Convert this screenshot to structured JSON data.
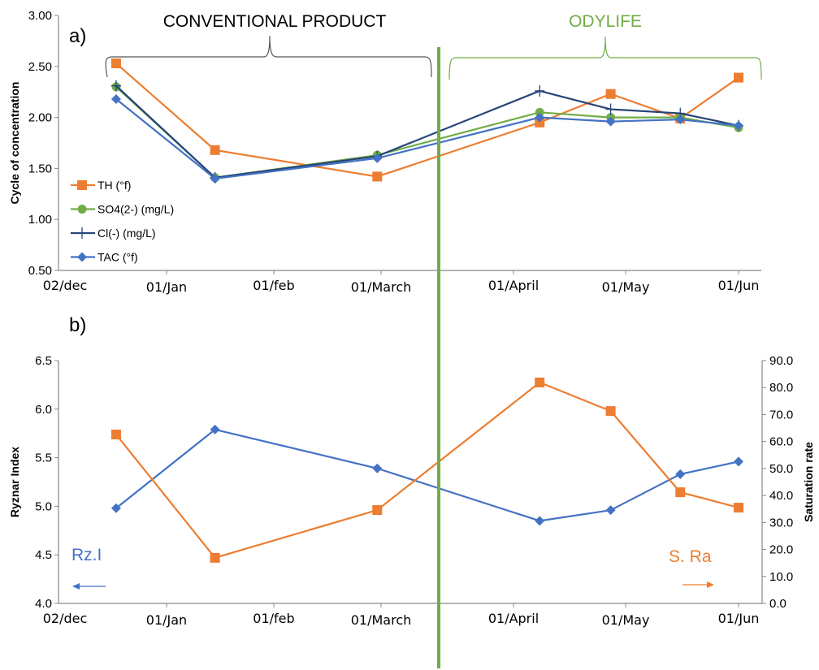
{
  "annotations": {
    "panel_a": "a)",
    "panel_b": "b)",
    "conventional": "CONVENTIONAL PRODUCT",
    "odylife": "ODYLIFE",
    "rzi_label": "Rz.I",
    "sra_label": "S. Ra"
  },
  "colors": {
    "TH": "#ed7d31",
    "SO4": "#70ad47",
    "Cl": "#264478",
    "TAC": "#4472c4",
    "divider": "#70ad47",
    "conventional_brace": "#555555",
    "odylife": "#70ad47"
  },
  "chart_data": [
    {
      "type": "line",
      "panel": "a)",
      "ylabel": "Cycle of concentration",
      "ylim": [
        0.5,
        3.0
      ],
      "yticks": [
        "0.50",
        "1.00",
        "1.50",
        "2.00",
        "2.50",
        "3.00"
      ],
      "xticks": [
        "02/dec",
        "01/Jan",
        "01/feb",
        "01/March",
        "01/April",
        "01/May",
        "01/Jun"
      ],
      "x": [
        "12-18",
        "01-15",
        "02-28",
        "04-08",
        "04-27",
        "05-16",
        "06-01"
      ],
      "legend_position": "left",
      "series": [
        {
          "name": "TH (°f)",
          "key": "TH",
          "marker": "square",
          "values": [
            2.53,
            1.68,
            1.42,
            1.95,
            2.23,
            1.99,
            2.39
          ]
        },
        {
          "name": "SO4(2-) (mg/L)",
          "key": "SO4",
          "marker": "circle",
          "values": [
            2.3,
            1.41,
            1.63,
            2.05,
            2.0,
            2.0,
            1.9
          ]
        },
        {
          "name": "Cl(-) (mg/L)",
          "key": "Cl",
          "marker": "plus",
          "values": [
            2.31,
            1.41,
            1.62,
            2.26,
            2.08,
            2.04,
            1.92
          ]
        },
        {
          "name": "TAC (°f)",
          "key": "TAC",
          "marker": "diamond",
          "values": [
            2.18,
            1.4,
            1.6,
            2.0,
            1.96,
            1.98,
            1.92
          ]
        }
      ]
    },
    {
      "type": "line",
      "panel": "b)",
      "ylabel": "Ryznar Index",
      "ylim": [
        4.0,
        6.5
      ],
      "yticks": [
        "4.0",
        "4.5",
        "5.0",
        "5.5",
        "6.0",
        "6.5"
      ],
      "y2label": "Saturation rate",
      "y2lim": [
        0,
        90
      ],
      "y2ticks": [
        "0.0",
        "10.0",
        "20.0",
        "30.0",
        "40.0",
        "50.0",
        "60.0",
        "70.0",
        "80.0",
        "90.0"
      ],
      "xticks": [
        "02/dec",
        "01/Jan",
        "01/feb",
        "01/March",
        "01/April",
        "01/May",
        "01/Jun"
      ],
      "x": [
        "12-18",
        "01-15",
        "02-28",
        "04-08",
        "04-27",
        "05-16",
        "06-01"
      ],
      "series": [
        {
          "name": "Rz.I",
          "key": "TAC",
          "axis": "left",
          "marker": "diamond",
          "values": [
            4.98,
            5.79,
            5.39,
            4.85,
            4.96,
            5.33,
            5.46
          ]
        },
        {
          "name": "S. Ra",
          "key": "TH",
          "axis": "right",
          "marker": "square",
          "values": [
            62.6,
            16.9,
            34.6,
            81.9,
            71.3,
            41.2,
            35.5
          ]
        }
      ]
    }
  ]
}
